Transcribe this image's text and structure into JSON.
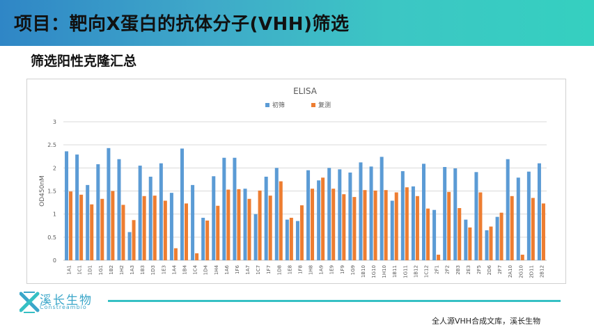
{
  "header": {
    "title": "项目：靶向X蛋白的抗体分子(VHH)筛选"
  },
  "section": {
    "title": "筛选阳性克隆汇总"
  },
  "logo": {
    "cn": "溪长生物",
    "en": "Constreambio"
  },
  "footer": {
    "note": "全人源VHH合成文库，溪长生物"
  },
  "colors": {
    "series1": "#5b9bd5",
    "series2": "#ed7d31",
    "grid": "#d9d9d9",
    "header_start": "#2f86c6",
    "header_end": "#35d0c0"
  },
  "chart_data": {
    "type": "bar",
    "title": "ELISA",
    "xlabel": "",
    "ylabel": "OD450nM",
    "ylim": [
      0,
      3
    ],
    "yticks": [
      0,
      0.5,
      1,
      1.5,
      2,
      2.5,
      3
    ],
    "grid": true,
    "legend": "top-center",
    "categories": [
      "1A1",
      "1C1",
      "1D1",
      "1G1",
      "1B2",
      "1H2",
      "1A3",
      "1B3",
      "1D3",
      "1E3",
      "1A4",
      "1B4",
      "1C4",
      "1D4",
      "1H4",
      "1A6",
      "1F6",
      "1A7",
      "1C7",
      "1F7",
      "1D8",
      "1E8",
      "1F8",
      "1H8",
      "1A9",
      "1E9",
      "1F9",
      "1G9",
      "1B10",
      "1G10",
      "1H10",
      "1B11",
      "1G11",
      "1B12",
      "1C12",
      "2F1",
      "2F2",
      "2B3",
      "2E3",
      "2F5",
      "2D6",
      "2F7",
      "2A10",
      "2G10",
      "2D11",
      "2B12"
    ],
    "series": [
      {
        "name": "初筛",
        "values": [
          2.36,
          2.29,
          1.63,
          2.08,
          2.43,
          2.19,
          0.61,
          2.05,
          1.81,
          2.1,
          1.46,
          2.42,
          1.63,
          0.92,
          1.82,
          2.22,
          2.22,
          1.55,
          1.0,
          1.81,
          2.0,
          0.88,
          0.85,
          1.95,
          1.73,
          2.0,
          1.97,
          1.9,
          2.12,
          2.03,
          2.24,
          1.29,
          1.93,
          1.6,
          2.09,
          1.09,
          2.02,
          1.99,
          0.88,
          1.91,
          0.65,
          0.94,
          2.19,
          1.79,
          1.92,
          2.1
        ]
      },
      {
        "name": "复测",
        "values": [
          1.49,
          1.42,
          1.21,
          1.33,
          1.5,
          1.2,
          0.87,
          1.39,
          1.4,
          1.29,
          0.26,
          1.23,
          0.15,
          0.86,
          1.18,
          1.53,
          1.54,
          1.33,
          1.51,
          1.4,
          1.71,
          0.92,
          1.19,
          1.55,
          1.79,
          1.55,
          1.43,
          1.37,
          1.52,
          1.51,
          1.52,
          1.47,
          1.58,
          1.39,
          1.12,
          0.12,
          1.48,
          1.13,
          0.71,
          1.47,
          0.73,
          1.03,
          1.39,
          0.12,
          1.35,
          1.23
        ]
      }
    ]
  }
}
